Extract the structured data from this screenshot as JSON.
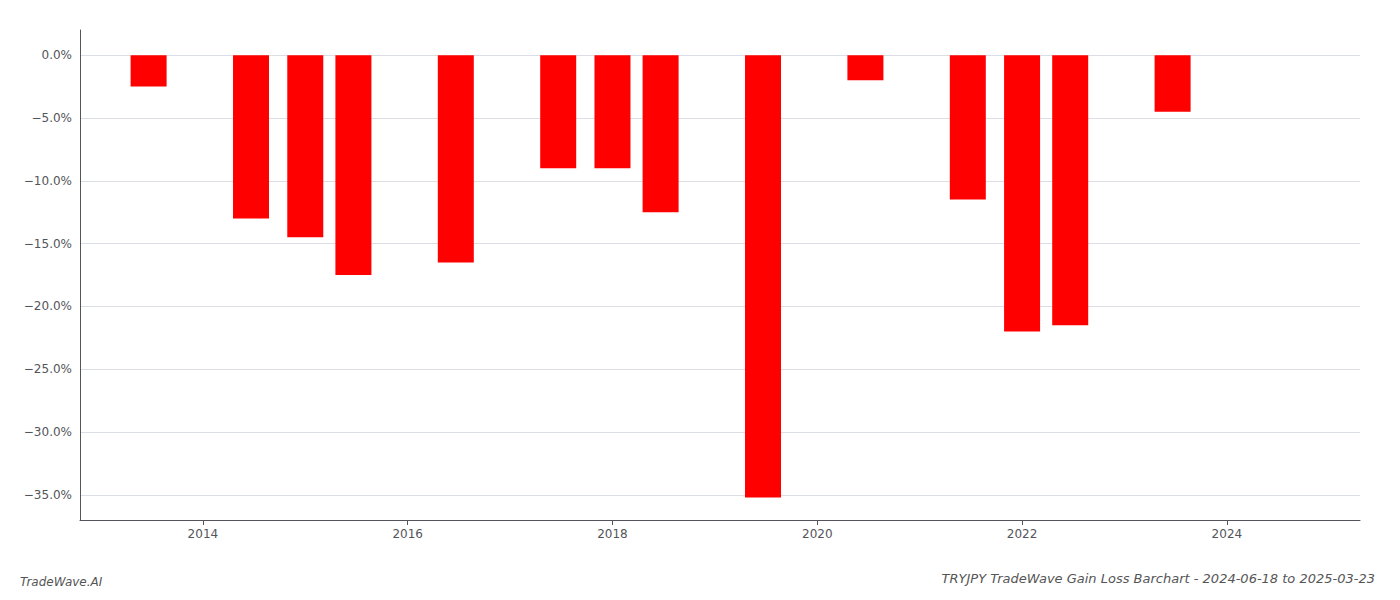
{
  "chart_data": {
    "type": "bar",
    "title": "TRYJPY TradeWave Gain Loss Barchart - 2024-06-18 to 2025-03-23",
    "annotations": [
      "TradeWave.AI"
    ],
    "x": [
      2013.47,
      2014.47,
      2015.0,
      2015.47,
      2016.47,
      2017.47,
      2018.0,
      2018.47,
      2019.47,
      2020.47,
      2021.47,
      2022.0,
      2022.47,
      2023.47
    ],
    "values": [
      -2.5,
      -13.0,
      -14.5,
      -17.5,
      -16.5,
      -9.0,
      -9.0,
      -12.5,
      -35.2,
      -2.0,
      -11.5,
      -22.0,
      -21.5,
      -4.5
    ],
    "color": "#ff0000",
    "xlim": [
      2012.8,
      2025.3
    ],
    "xticks": [
      2014,
      2016,
      2018,
      2020,
      2022,
      2024
    ],
    "ylim": [
      -37,
      2
    ],
    "yticks": [
      {
        "value": 0,
        "label": "0.0%"
      },
      {
        "value": -5,
        "label": "−5.0%"
      },
      {
        "value": -10,
        "label": "−10.0%"
      },
      {
        "value": -15,
        "label": "−15.0%"
      },
      {
        "value": -20,
        "label": "−20.0%"
      },
      {
        "value": -25,
        "label": "−25.0%"
      },
      {
        "value": -30,
        "label": "−30.0%"
      },
      {
        "value": -35,
        "label": "−35.0%"
      }
    ],
    "grid": true
  }
}
